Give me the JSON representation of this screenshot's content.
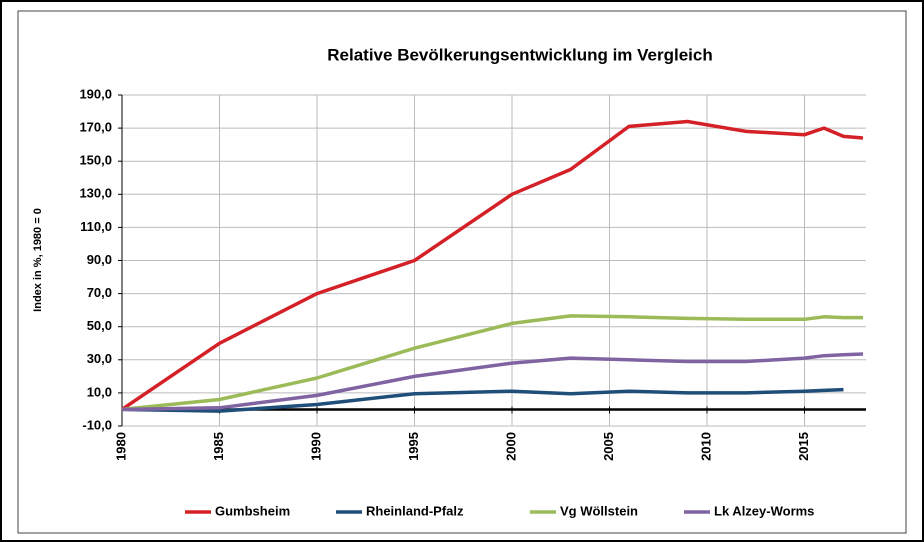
{
  "chart_data": {
    "type": "line",
    "title": "Relative Bevölkerungsentwicklung im Vergleich",
    "y_label": "Index in %, 1980 = 0",
    "x": [
      1980,
      1985,
      1990,
      1995,
      2000,
      2003,
      2006,
      2009,
      2012,
      2015,
      2016,
      2017,
      2018
    ],
    "series": [
      {
        "name": "Gumbsheim",
        "color": "#d42027",
        "values": [
          0,
          40,
          70,
          90,
          130,
          145,
          171,
          174,
          168,
          166,
          170,
          165,
          164
        ]
      },
      {
        "name": "Rheinland-Pfalz",
        "color": "#1f4e79",
        "values": [
          0,
          -1,
          3,
          9.5,
          11,
          9.5,
          11,
          10,
          10,
          11,
          11.5,
          12,
          null
        ]
      },
      {
        "name": "Vg Wöllstein",
        "color": "#9bbb59",
        "values": [
          0,
          6,
          19,
          37,
          52,
          56.5,
          56,
          55,
          54.5,
          54.5,
          56,
          55.5,
          55.5
        ]
      },
      {
        "name": "Lk Alzey-Worms",
        "color": "#8064a2",
        "values": [
          0,
          1,
          8.5,
          20,
          28,
          31,
          30,
          29,
          29,
          31,
          32.5,
          33,
          33.5
        ]
      }
    ],
    "xlim": [
      1980,
      2018
    ],
    "xticks": [
      1980,
      1985,
      1990,
      1995,
      2000,
      2005,
      2010,
      2015
    ],
    "ylim": [
      -10,
      190
    ],
    "yticks": [
      {
        "value": -10,
        "label": "-10,0"
      },
      {
        "value": 10,
        "label": "10,0"
      },
      {
        "value": 30,
        "label": "30,0"
      },
      {
        "value": 50,
        "label": "50,0"
      },
      {
        "value": 70,
        "label": "70,0"
      },
      {
        "value": 90,
        "label": "90,0"
      },
      {
        "value": 110,
        "label": "110,0"
      },
      {
        "value": 130,
        "label": "130,0"
      },
      {
        "value": 150,
        "label": "150,0"
      },
      {
        "value": 170,
        "label": "170,0"
      },
      {
        "value": 190,
        "label": "190,0"
      }
    ],
    "grid": true,
    "legend": "bottom"
  }
}
